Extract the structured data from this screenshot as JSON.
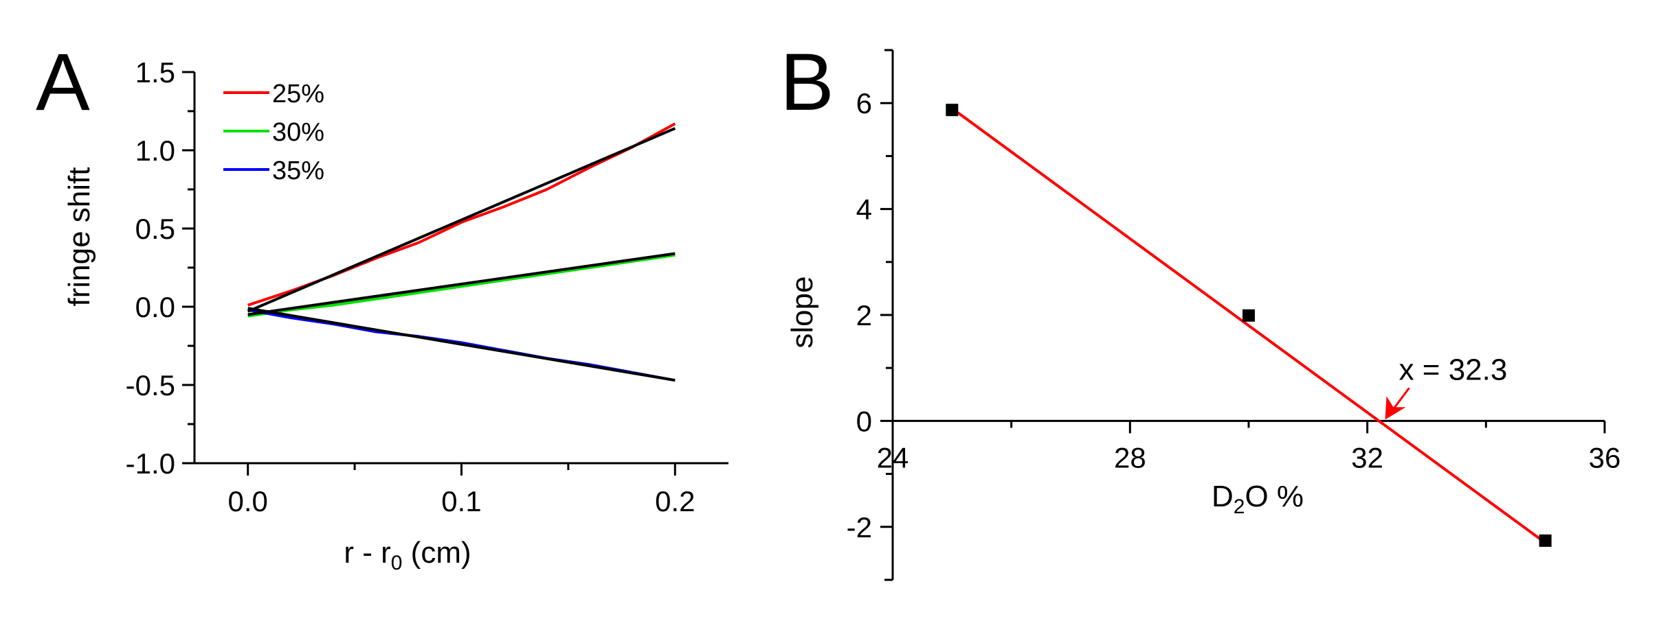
{
  "chart_data": [
    {
      "panel": "A",
      "type": "line",
      "xlabel": {
        "main": "r - r",
        "sub": "0",
        "tail": " (cm)"
      },
      "ylabel": "fringe shift",
      "xlim": [
        -0.025,
        0.225
      ],
      "ylim": [
        -1.0,
        1.5
      ],
      "xticks": [
        0.0,
        0.1,
        0.2
      ],
      "xtick_labels": [
        "0.0",
        "0.1",
        "0.2"
      ],
      "yticks": [
        -1.0,
        -0.5,
        0.0,
        0.5,
        1.0,
        1.5
      ],
      "ytick_labels": [
        "-1.0",
        "-0.5",
        "0.0",
        "0.5",
        "1.0",
        "1.5"
      ],
      "grid": false,
      "legend": "top-left",
      "series": [
        {
          "name": "25%",
          "color": "#ff0000",
          "x": [
            0.0,
            0.02,
            0.04,
            0.06,
            0.08,
            0.1,
            0.12,
            0.14,
            0.16,
            0.18,
            0.2
          ],
          "y": [
            0.01,
            0.1,
            0.2,
            0.31,
            0.41,
            0.54,
            0.64,
            0.75,
            0.89,
            1.02,
            1.17
          ]
        },
        {
          "name": "30%",
          "color": "#00e000",
          "x": [
            0.0,
            0.02,
            0.04,
            0.06,
            0.08,
            0.1,
            0.12,
            0.14,
            0.16,
            0.18,
            0.2
          ],
          "y": [
            -0.06,
            -0.02,
            0.01,
            0.05,
            0.09,
            0.13,
            0.17,
            0.21,
            0.25,
            0.29,
            0.33
          ]
        },
        {
          "name": "35%",
          "color": "#0000ff",
          "x": [
            0.0,
            0.02,
            0.04,
            0.06,
            0.08,
            0.1,
            0.12,
            0.14,
            0.16,
            0.18,
            0.2
          ],
          "y": [
            -0.02,
            -0.07,
            -0.11,
            -0.16,
            -0.19,
            -0.23,
            -0.28,
            -0.33,
            -0.37,
            -0.42,
            -0.47
          ]
        }
      ],
      "fits": [
        {
          "color": "#000000",
          "x": [
            0.0,
            0.2
          ],
          "y": [
            -0.03,
            1.14
          ]
        },
        {
          "color": "#000000",
          "x": [
            0.0,
            0.2
          ],
          "y": [
            -0.05,
            0.34
          ]
        },
        {
          "color": "#000000",
          "x": [
            0.0,
            0.2
          ],
          "y": [
            -0.01,
            -0.47
          ]
        }
      ]
    },
    {
      "panel": "B",
      "type": "scatter",
      "xlabel": {
        "main": "D",
        "sub": "2",
        "tail": "O %"
      },
      "ylabel": "slope",
      "xlim": [
        24,
        36
      ],
      "ylim": [
        -3,
        7
      ],
      "xticks": [
        24,
        28,
        32,
        36
      ],
      "xtick_labels": [
        "24",
        "28",
        "32",
        "36"
      ],
      "yticks": [
        -2,
        0,
        2,
        4,
        6
      ],
      "ytick_labels": [
        "-2",
        "0",
        "2",
        "4",
        "6"
      ],
      "grid": false,
      "points": {
        "color": "#000000",
        "x": [
          25,
          30,
          35
        ],
        "y": [
          5.87,
          1.99,
          -2.26
        ]
      },
      "fit": {
        "color": "#ff0000",
        "x": [
          25,
          35
        ],
        "y": [
          5.9,
          -2.3
        ]
      },
      "annotation": {
        "text": "x = 32.3",
        "x": 32.3,
        "y": 0,
        "color": "#ff0000"
      }
    }
  ]
}
